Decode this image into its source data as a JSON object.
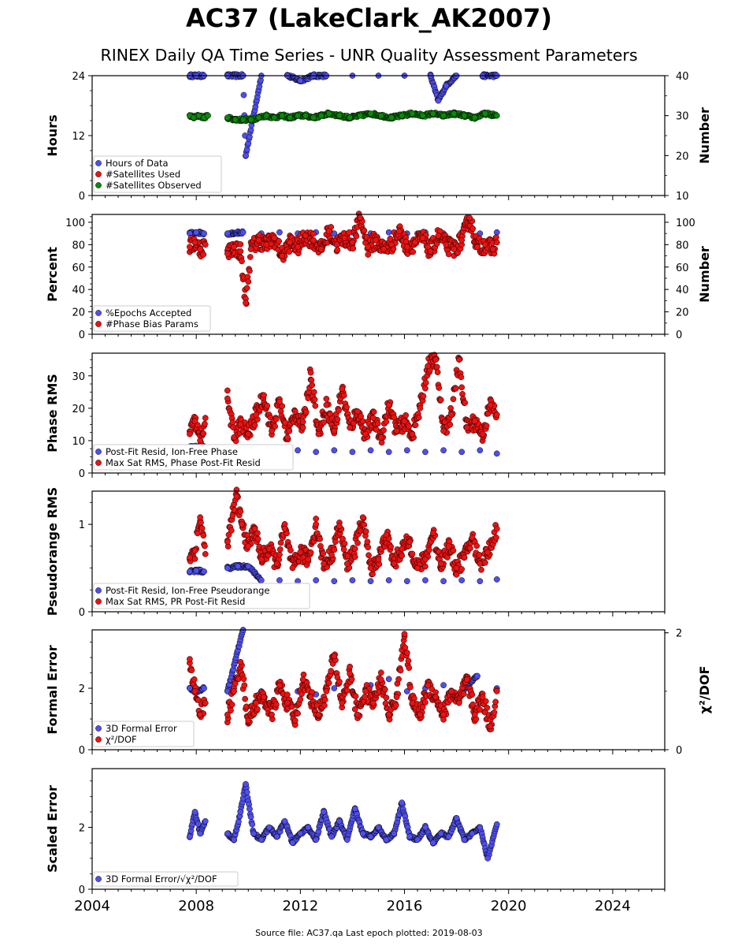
{
  "title": "AC37 (LakeClark_AK2007)",
  "subtitle": "RINEX Daily QA Time Series - UNR Quality Assessment Parameters",
  "footer": "Source file: AC37.qa Last epoch plotted: 2019-08-03",
  "colors": {
    "blue": "#4f4ff0",
    "red": "#ee1111",
    "green": "#0a8a0a",
    "edge": "#000000"
  },
  "chart_data": [
    {
      "type": "scatter",
      "name": "hours-panel",
      "ylabel": "Hours",
      "y2label": "Number",
      "xlim": [
        2004,
        2026
      ],
      "ylim": [
        0,
        24
      ],
      "y2lim": [
        10,
        40
      ],
      "yticks": [
        0,
        12,
        24
      ],
      "y2ticks": [
        10,
        20,
        30,
        40
      ],
      "legend": [
        "Hours of Data",
        "#Satellites Used",
        "#Satellites Observed"
      ],
      "series": [
        {
          "name": "Hours of Data",
          "axis": "left",
          "x": [
            2007.75,
            2008.0,
            2008.3,
            2009.2,
            2009.8,
            2009.9,
            2010.5,
            2011.5,
            2012.0,
            2012.5,
            2013.0,
            2014.0,
            2015.0,
            2016.0,
            2017.0,
            2017.3,
            2017.6,
            2018.0,
            2019.0,
            2019.55
          ],
          "y": [
            24,
            24,
            24,
            24,
            24,
            8,
            24,
            24,
            23,
            24,
            24,
            24,
            24,
            24,
            24,
            19,
            22,
            24,
            24,
            24
          ]
        },
        {
          "name": "#Satellites Observed",
          "axis": "right",
          "x": [
            2007.75,
            2007.9,
            2008.1,
            2008.3,
            2008.45,
            2009.2,
            2009.5,
            2009.8,
            2010.1,
            2010.4,
            2010.7,
            2011.0,
            2011.3,
            2011.6,
            2011.9,
            2012.2,
            2012.5,
            2012.8,
            2013.1,
            2013.5,
            2013.9,
            2014.3,
            2014.7,
            2015.1,
            2015.5,
            2015.9,
            2016.3,
            2016.7,
            2017.1,
            2017.5,
            2017.9,
            2018.3,
            2018.7,
            2019.1,
            2019.55
          ],
          "y": [
            30,
            29.5,
            30,
            29.5,
            30,
            29.5,
            29,
            29,
            29,
            29.5,
            30,
            29.5,
            30,
            29.5,
            30,
            30,
            29.5,
            30,
            30.5,
            30,
            29.5,
            30,
            30.5,
            30,
            29.5,
            30,
            30.5,
            30,
            30.5,
            30,
            30.5,
            30,
            29.5,
            30.5,
            30
          ]
        }
      ]
    },
    {
      "type": "scatter",
      "name": "percent-panel",
      "ylabel": "Percent",
      "y2label": "Number",
      "xlim": [
        2004,
        2026
      ],
      "ylim": [
        0,
        107
      ],
      "y2lim": [
        0,
        107
      ],
      "yticks": [
        0,
        20,
        40,
        60,
        80,
        100
      ],
      "y2ticks": [
        0,
        20,
        40,
        60,
        80,
        100
      ],
      "legend": [
        "%Epochs Accepted",
        "#Phase Bias Params"
      ],
      "series": [
        {
          "name": "%Epochs Accepted",
          "axis": "left",
          "x": [
            2007.75,
            2008.0,
            2008.3,
            2009.2,
            2009.8,
            2010.5,
            2011.2,
            2011.9,
            2012.6,
            2013.3,
            2014.0,
            2014.7,
            2015.4,
            2016.1,
            2016.8,
            2017.5,
            2018.2,
            2018.9,
            2019.55
          ],
          "y": [
            90,
            91,
            90,
            90,
            91,
            90,
            91,
            90,
            91,
            90,
            91,
            90,
            91,
            90,
            91,
            90,
            91,
            90,
            91
          ]
        },
        {
          "name": "#Phase Bias Params",
          "axis": "right",
          "x": [
            2007.75,
            2007.95,
            2008.15,
            2008.35,
            2009.2,
            2009.45,
            2009.7,
            2009.9,
            2010.1,
            2010.4,
            2010.7,
            2011.0,
            2011.3,
            2011.6,
            2011.9,
            2012.2,
            2012.5,
            2012.8,
            2013.1,
            2013.4,
            2013.7,
            2014.0,
            2014.3,
            2014.6,
            2014.9,
            2015.2,
            2015.5,
            2015.8,
            2016.1,
            2016.4,
            2016.7,
            2017.0,
            2017.3,
            2017.6,
            2017.9,
            2018.2,
            2018.5,
            2018.8,
            2019.1,
            2019.4,
            2019.55
          ],
          "y": [
            78,
            82,
            76,
            80,
            72,
            78,
            74,
            28,
            76,
            84,
            80,
            86,
            70,
            82,
            78,
            88,
            84,
            76,
            92,
            80,
            86,
            82,
            104,
            78,
            84,
            76,
            80,
            92,
            78,
            82,
            86,
            74,
            88,
            80,
            76,
            84,
            104,
            78,
            80,
            76,
            82
          ]
        }
      ]
    },
    {
      "type": "scatter",
      "name": "phase-rms-panel",
      "ylabel": "Phase RMS",
      "xlim": [
        2004,
        2026
      ],
      "ylim": [
        0,
        37
      ],
      "yticks": [
        0,
        10,
        20,
        30
      ],
      "legend": [
        "Post-Fit Resid, Ion-Free Phase",
        "Max Sat RMS, Phase Post-Fit Resid"
      ],
      "series": [
        {
          "name": "Post-Fit Resid, Ion-Free Phase",
          "x": [
            2007.75,
            2008.0,
            2008.3,
            2009.2,
            2009.8,
            2010.5,
            2011.2,
            2011.9,
            2012.6,
            2013.3,
            2014.0,
            2014.7,
            2015.4,
            2016.1,
            2016.8,
            2017.5,
            2018.2,
            2018.9,
            2019.55
          ],
          "y": [
            8,
            8,
            8,
            7,
            7,
            7,
            6.5,
            7,
            6.5,
            7,
            6.5,
            7,
            6.5,
            7,
            6.5,
            7,
            6.5,
            7,
            6
          ]
        },
        {
          "name": "Max Sat RMS, Phase Post-Fit Resid",
          "x": [
            2007.75,
            2007.95,
            2008.15,
            2008.35,
            2009.2,
            2009.45,
            2009.7,
            2010.0,
            2010.3,
            2010.6,
            2010.9,
            2011.2,
            2011.5,
            2011.8,
            2012.1,
            2012.4,
            2012.7,
            2013.0,
            2013.3,
            2013.6,
            2013.9,
            2014.2,
            2014.5,
            2014.8,
            2015.1,
            2015.4,
            2015.7,
            2016.0,
            2016.3,
            2016.6,
            2016.9,
            2017.2,
            2017.5,
            2017.8,
            2018.1,
            2018.4,
            2018.7,
            2019.0,
            2019.3,
            2019.55
          ],
          "y": [
            12,
            16,
            10,
            17,
            23,
            11,
            15,
            12,
            18,
            24,
            13,
            22,
            11,
            19,
            14,
            31,
            12,
            21,
            13,
            26,
            14,
            19,
            12,
            17,
            11,
            21,
            13,
            16,
            12,
            20,
            33,
            35,
            13,
            18,
            35,
            14,
            16,
            12,
            21,
            18
          ]
        }
      ]
    },
    {
      "type": "scatter",
      "name": "pseudorange-rms-panel",
      "ylabel": "Pseudorange RMS",
      "xlim": [
        2004,
        2026
      ],
      "ylim": [
        0,
        1.38
      ],
      "yticks": [
        0,
        1
      ],
      "legend": [
        "Post-Fit Resid, Ion-Free Pseudorange",
        "Max Sat RMS, PR Post-Fit Resid"
      ],
      "series": [
        {
          "name": "Post-Fit Resid, Ion-Free Pseudorange",
          "x": [
            2007.75,
            2008.0,
            2008.3,
            2009.2,
            2009.6,
            2010.0,
            2010.5,
            2011.2,
            2011.9,
            2012.6,
            2013.3,
            2014.0,
            2014.7,
            2015.4,
            2016.1,
            2016.8,
            2017.5,
            2018.2,
            2018.9,
            2019.55
          ],
          "y": [
            0.46,
            0.47,
            0.46,
            0.5,
            0.52,
            0.52,
            0.36,
            0.36,
            0.35,
            0.36,
            0.35,
            0.36,
            0.35,
            0.36,
            0.35,
            0.36,
            0.35,
            0.36,
            0.35,
            0.37
          ]
        },
        {
          "name": "Max Sat RMS, PR Post-Fit Resid",
          "x": [
            2007.75,
            2007.95,
            2008.15,
            2008.35,
            2009.2,
            2009.4,
            2009.55,
            2009.75,
            2010.0,
            2010.25,
            2010.5,
            2010.8,
            2011.1,
            2011.4,
            2011.7,
            2012.0,
            2012.3,
            2012.6,
            2012.9,
            2013.2,
            2013.5,
            2013.8,
            2014.1,
            2014.4,
            2014.7,
            2015.0,
            2015.3,
            2015.6,
            2015.9,
            2016.2,
            2016.5,
            2016.8,
            2017.1,
            2017.4,
            2017.7,
            2018.0,
            2018.3,
            2018.6,
            2018.9,
            2019.2,
            2019.55
          ],
          "y": [
            0.62,
            0.7,
            1.08,
            0.66,
            0.8,
            1.1,
            1.32,
            1.0,
            0.75,
            0.95,
            0.6,
            0.72,
            0.55,
            0.95,
            0.5,
            0.68,
            0.6,
            1.0,
            0.55,
            0.65,
            0.98,
            0.55,
            0.72,
            1.08,
            0.5,
            0.6,
            0.88,
            0.55,
            0.72,
            0.8,
            0.5,
            0.6,
            0.9,
            0.55,
            0.75,
            0.5,
            0.62,
            0.85,
            0.55,
            0.68,
            0.95
          ]
        }
      ]
    },
    {
      "type": "scatter",
      "name": "formal-error-panel",
      "ylabel": "Formal Error",
      "y2label": "χ²/DOF",
      "xlim": [
        2004,
        2026
      ],
      "ylim": [
        0,
        3.9
      ],
      "y2lim": [
        0,
        2.05
      ],
      "yticks": [
        0,
        2
      ],
      "y2ticks": [
        0,
        2
      ],
      "legend": [
        "3D Formal Error",
        "χ²/DOF"
      ],
      "series": [
        {
          "name": "3D Formal Error",
          "axis": "left",
          "x": [
            2007.75,
            2008.0,
            2008.3,
            2009.2,
            2009.8,
            2010.5,
            2011.2,
            2011.9,
            2012.6,
            2013.3,
            2014.0,
            2014.7,
            2015.4,
            2016.1,
            2016.8,
            2017.5,
            2018.2,
            2018.8,
            2019.55
          ],
          "y": [
            2.0,
            1.9,
            2.0,
            1.9,
            3.9,
            1.9,
            2.0,
            1.9,
            1.8,
            2.0,
            1.9,
            2.1,
            2.3,
            1.9,
            2.0,
            2.1,
            1.9,
            2.4,
            2.0
          ]
        },
        {
          "name": "χ²/DOF",
          "axis": "right",
          "x": [
            2007.75,
            2007.95,
            2008.15,
            2008.35,
            2009.2,
            2009.45,
            2009.7,
            2010.0,
            2010.3,
            2010.6,
            2010.9,
            2011.2,
            2011.5,
            2011.8,
            2012.1,
            2012.4,
            2012.7,
            2013.0,
            2013.3,
            2013.6,
            2013.9,
            2014.2,
            2014.5,
            2014.8,
            2015.1,
            2015.4,
            2015.7,
            2016.0,
            2016.3,
            2016.6,
            2016.9,
            2017.2,
            2017.5,
            2017.8,
            2018.1,
            2018.4,
            2018.7,
            2019.0,
            2019.3,
            2019.55
          ],
          "y": [
            1.55,
            1.0,
            0.6,
            0.8,
            0.6,
            1.0,
            1.5,
            0.5,
            0.8,
            0.9,
            0.6,
            1.1,
            0.8,
            0.5,
            1.2,
            0.9,
            0.6,
            1.0,
            1.6,
            0.8,
            1.3,
            0.6,
            1.0,
            0.8,
            1.2,
            0.6,
            0.9,
            1.98,
            0.8,
            0.6,
            1.1,
            0.9,
            0.6,
            1.0,
            0.8,
            1.2,
            0.6,
            0.9,
            0.4,
            1.0
          ]
        }
      ]
    },
    {
      "type": "scatter",
      "name": "scaled-error-panel",
      "ylabel": "Scaled Error",
      "xlim": [
        2004,
        2026
      ],
      "ylim": [
        0,
        3.9
      ],
      "yticks": [
        0,
        2
      ],
      "xticks": [
        2004,
        2008,
        2012,
        2016,
        2020,
        2024
      ],
      "legend": [
        "3D Formal Error/√χ²/DOF"
      ],
      "series": [
        {
          "name": "3D Formal Error/√χ²/DOF",
          "x": [
            2007.75,
            2007.95,
            2008.15,
            2008.35,
            2009.2,
            2009.45,
            2009.7,
            2009.9,
            2010.2,
            2010.5,
            2010.8,
            2011.1,
            2011.4,
            2011.7,
            2012.0,
            2012.3,
            2012.6,
            2012.9,
            2013.2,
            2013.5,
            2013.8,
            2014.1,
            2014.4,
            2014.7,
            2015.0,
            2015.3,
            2015.6,
            2015.9,
            2016.2,
            2016.5,
            2016.8,
            2017.1,
            2017.4,
            2017.7,
            2018.0,
            2018.3,
            2018.6,
            2018.9,
            2019.2,
            2019.55
          ],
          "y": [
            1.7,
            2.5,
            1.8,
            2.2,
            1.8,
            1.6,
            2.5,
            3.4,
            1.8,
            1.6,
            2.0,
            1.7,
            2.2,
            1.5,
            1.8,
            2.0,
            1.6,
            2.5,
            1.7,
            2.2,
            1.6,
            2.6,
            1.8,
            1.7,
            2.0,
            1.6,
            1.8,
            2.8,
            1.7,
            1.6,
            2.0,
            1.5,
            1.8,
            1.7,
            2.3,
            1.6,
            1.8,
            2.0,
            1.0,
            2.1
          ]
        }
      ]
    }
  ]
}
